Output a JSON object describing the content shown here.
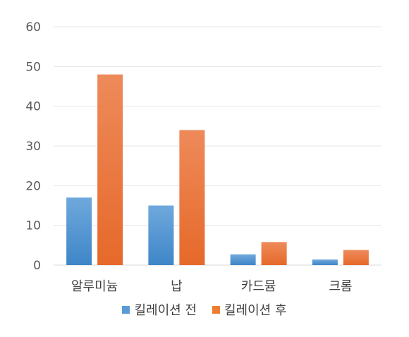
{
  "chart_data": {
    "type": "bar",
    "categories": [
      "알루미늄",
      "납",
      "카드뮴",
      "크롬"
    ],
    "series": [
      {
        "name": "킬레이션 전",
        "values": [
          17,
          15,
          2.7,
          1.4
        ],
        "color": "#5B9BD5"
      },
      {
        "name": "킬레이션 후",
        "values": [
          48,
          34,
          5.8,
          3.8
        ],
        "color": "#ED7D31"
      }
    ],
    "yticks": [
      0,
      10,
      20,
      30,
      40,
      50,
      60
    ],
    "ylim": [
      0,
      60
    ],
    "title": "",
    "xlabel": "",
    "ylabel": "",
    "grid": true,
    "legend_position": "bottom"
  }
}
